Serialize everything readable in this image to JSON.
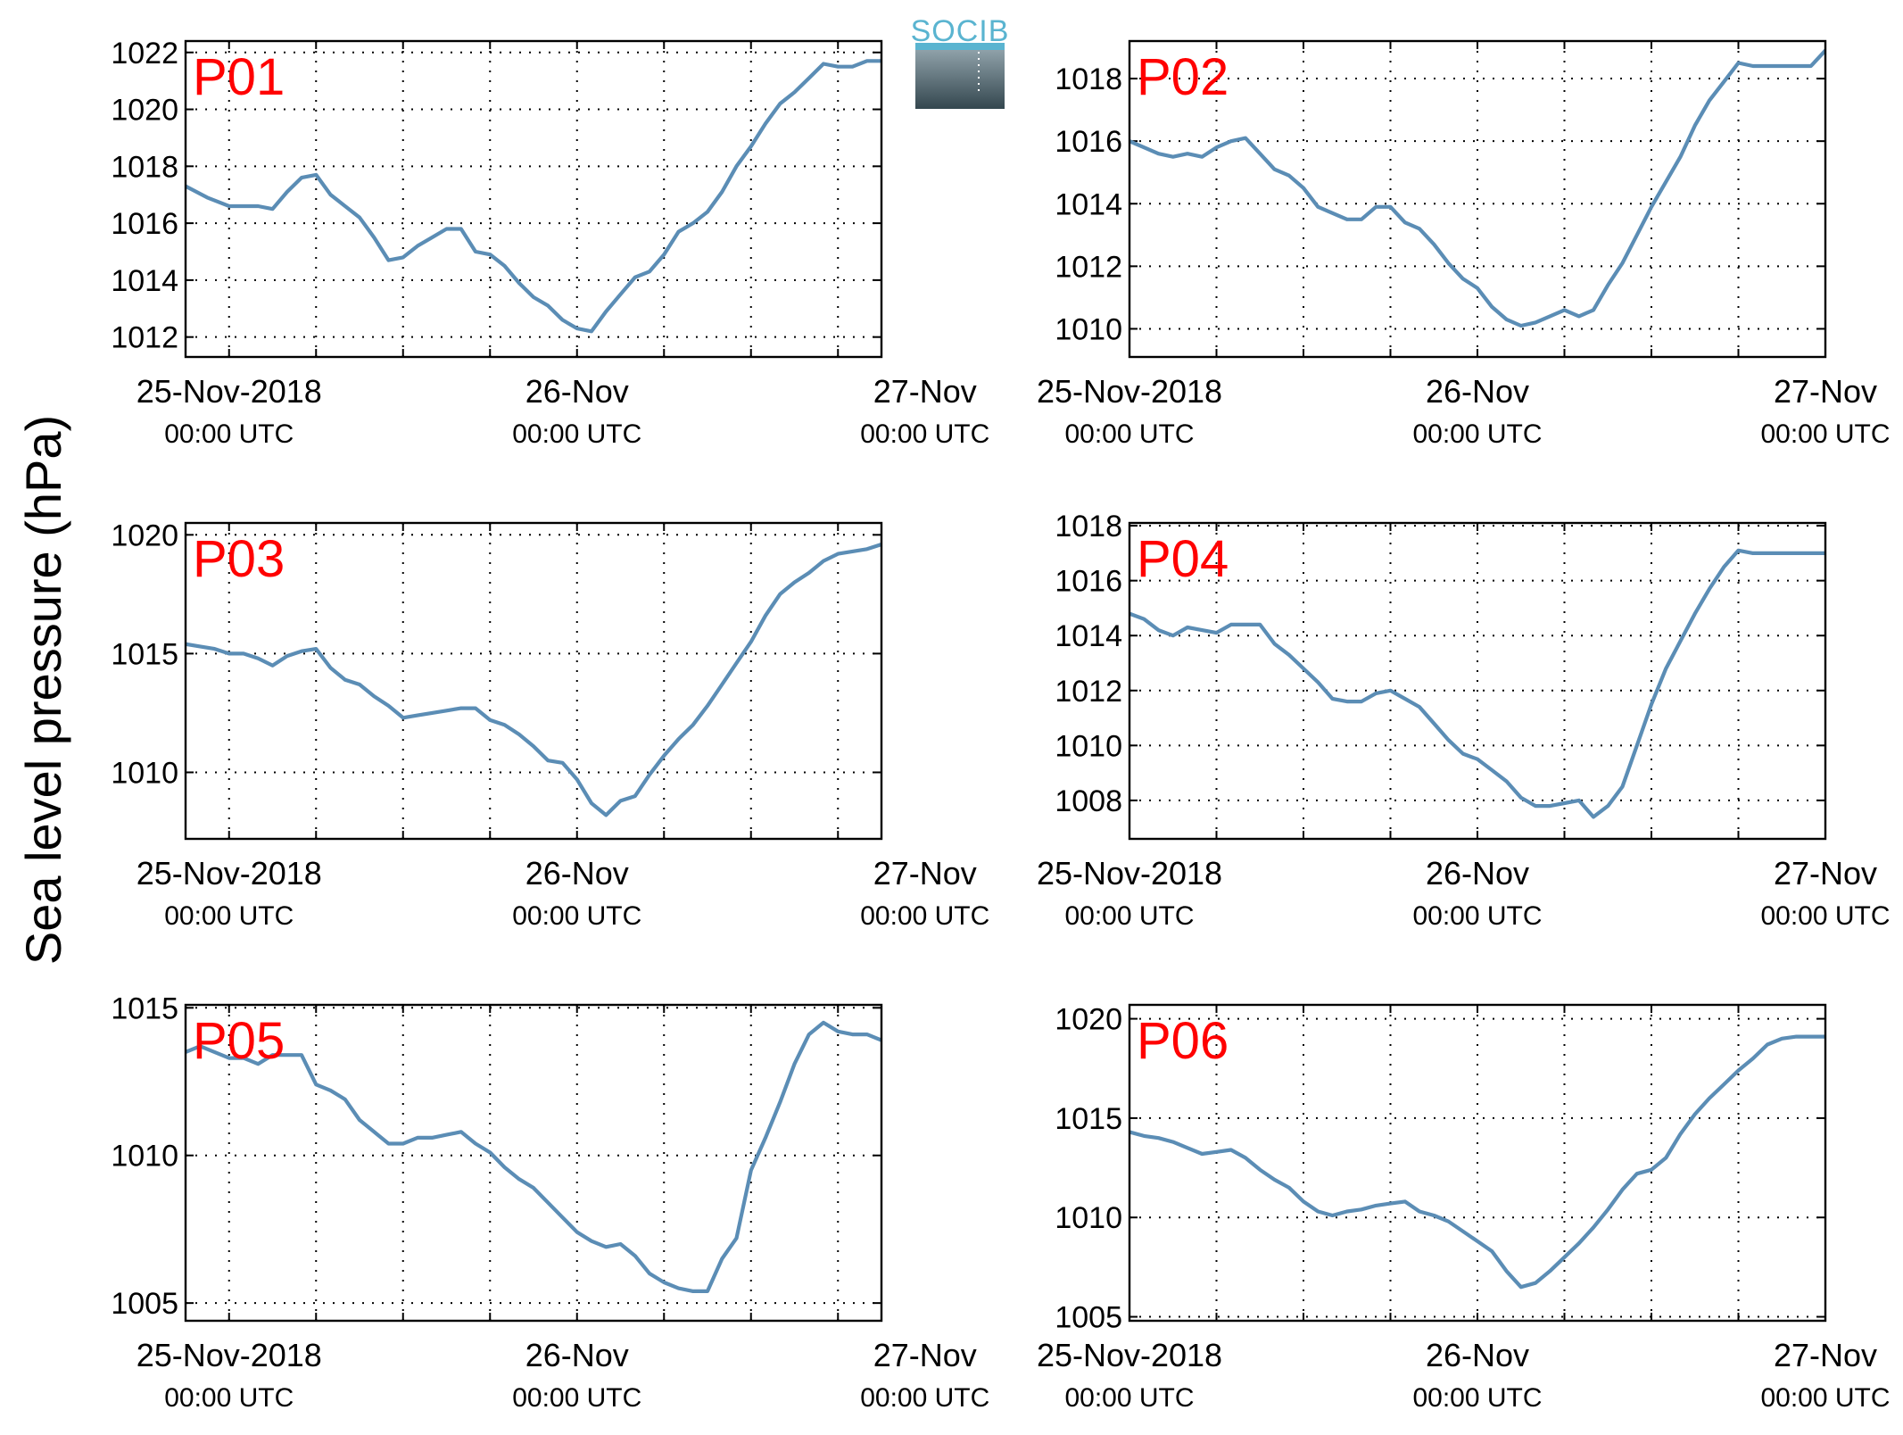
{
  "ylabel": "Sea level pressure (hPa)",
  "logo": {
    "text": "SOCIB",
    "text_color": "#5ab4d0",
    "box_top_color": "#9aacb4",
    "box_bottom_color": "#34474f"
  },
  "colors": {
    "series": "#5b8db5",
    "panel_label": "#ff0000"
  },
  "chart_data": [
    {
      "type": "line",
      "title": "P01",
      "grid": true,
      "x_tick_labels": [
        [
          "25-Nov-2018",
          "00:00 UTC"
        ],
        [
          "26-Nov",
          "00:00 UTC"
        ],
        [
          "27-Nov",
          "00:00 UTC"
        ]
      ],
      "xlim_hours": [
        -3,
        45
      ],
      "ylim": [
        1011.3,
        1022.4
      ],
      "y_ticks": [
        1012,
        1014,
        1016,
        1018,
        1020,
        1022
      ],
      "series": [
        {
          "x_hours": [
            -3,
            -1.5,
            0,
            1,
            2,
            3,
            4,
            5,
            6,
            7,
            8,
            9,
            10,
            11,
            12,
            13,
            14,
            15,
            16,
            17,
            18,
            19,
            20,
            21,
            22,
            23,
            24,
            25,
            26,
            27,
            28,
            29,
            30,
            31,
            32,
            33,
            34,
            35,
            36,
            37,
            38,
            39,
            40,
            41,
            42,
            43,
            44,
            45
          ],
          "values": [
            1017.3,
            1016.9,
            1016.6,
            1016.6,
            1016.6,
            1016.5,
            1017.1,
            1017.6,
            1017.7,
            1017.0,
            1016.6,
            1016.2,
            1015.5,
            1014.7,
            1014.8,
            1015.2,
            1015.5,
            1015.8,
            1015.8,
            1015.0,
            1014.9,
            1014.5,
            1013.9,
            1013.4,
            1013.1,
            1012.6,
            1012.3,
            1012.2,
            1012.9,
            1013.5,
            1014.1,
            1014.3,
            1014.9,
            1015.7,
            1016.0,
            1016.4,
            1017.1,
            1018.0,
            1018.7,
            1019.5,
            1020.2,
            1020.6,
            1021.1,
            1021.6,
            1021.5,
            1021.5,
            1021.7,
            1021.7
          ]
        }
      ]
    },
    {
      "type": "line",
      "title": "P02",
      "grid": true,
      "x_tick_labels": [
        [
          "25-Nov-2018",
          "00:00 UTC"
        ],
        [
          "26-Nov",
          "00:00 UTC"
        ],
        [
          "27-Nov",
          "00:00 UTC"
        ]
      ],
      "xlim_hours": [
        0,
        48
      ],
      "ylim": [
        1009.1,
        1019.2
      ],
      "y_ticks": [
        1010,
        1012,
        1014,
        1016,
        1018
      ],
      "series": [
        {
          "x_hours": [
            0,
            1,
            2,
            3,
            4,
            5,
            6,
            7,
            8,
            9,
            10,
            11,
            12,
            13,
            14,
            15,
            16,
            17,
            18,
            19,
            20,
            21,
            22,
            23,
            24,
            25,
            26,
            27,
            28,
            29,
            30,
            31,
            32,
            33,
            34,
            35,
            36,
            37,
            38,
            39,
            40,
            41,
            42,
            43,
            44,
            45,
            46,
            47,
            48
          ],
          "values": [
            1016.0,
            1015.8,
            1015.6,
            1015.5,
            1015.6,
            1015.5,
            1015.8,
            1016.0,
            1016.1,
            1015.6,
            1015.1,
            1014.9,
            1014.5,
            1013.9,
            1013.7,
            1013.5,
            1013.5,
            1013.9,
            1013.9,
            1013.4,
            1013.2,
            1012.7,
            1012.1,
            1011.6,
            1011.3,
            1010.7,
            1010.3,
            1010.1,
            1010.2,
            1010.4,
            1010.6,
            1010.4,
            1010.6,
            1011.4,
            1012.1,
            1013.0,
            1013.9,
            1014.7,
            1015.5,
            1016.5,
            1017.3,
            1017.9,
            1018.5,
            1018.4,
            1018.4,
            1018.4,
            1018.4,
            1018.4,
            1018.9
          ]
        }
      ]
    },
    {
      "type": "line",
      "title": "P03",
      "grid": true,
      "x_tick_labels": [
        [
          "25-Nov-2018",
          "00:00 UTC"
        ],
        [
          "26-Nov",
          "00:00 UTC"
        ],
        [
          "27-Nov",
          "00:00 UTC"
        ]
      ],
      "xlim_hours": [
        -3,
        45
      ],
      "ylim": [
        1007.2,
        1020.5
      ],
      "y_ticks": [
        1010,
        1015,
        1020
      ],
      "series": [
        {
          "x_hours": [
            -3,
            -2,
            -1,
            0,
            1,
            2,
            3,
            4,
            5,
            6,
            7,
            8,
            9,
            10,
            11,
            12,
            13,
            14,
            15,
            16,
            17,
            18,
            19,
            20,
            21,
            22,
            23,
            24,
            25,
            26,
            27,
            28,
            29,
            30,
            31,
            32,
            33,
            34,
            35,
            36,
            37,
            38,
            39,
            40,
            41,
            42,
            43,
            44,
            45
          ],
          "values": [
            1015.4,
            1015.3,
            1015.2,
            1015.0,
            1015.0,
            1014.8,
            1014.5,
            1014.9,
            1015.1,
            1015.2,
            1014.4,
            1013.9,
            1013.7,
            1013.2,
            1012.8,
            1012.3,
            1012.4,
            1012.5,
            1012.6,
            1012.7,
            1012.7,
            1012.2,
            1012.0,
            1011.6,
            1011.1,
            1010.5,
            1010.4,
            1009.7,
            1008.7,
            1008.2,
            1008.8,
            1009.0,
            1009.9,
            1010.7,
            1011.4,
            1012.0,
            1012.8,
            1013.7,
            1014.6,
            1015.5,
            1016.6,
            1017.5,
            1018.0,
            1018.4,
            1018.9,
            1019.2,
            1019.3,
            1019.4,
            1019.6
          ]
        }
      ]
    },
    {
      "type": "line",
      "title": "P04",
      "grid": true,
      "x_tick_labels": [
        [
          "25-Nov-2018",
          "00:00 UTC"
        ],
        [
          "26-Nov",
          "00:00 UTC"
        ],
        [
          "27-Nov",
          "00:00 UTC"
        ]
      ],
      "xlim_hours": [
        0,
        48
      ],
      "ylim": [
        1006.6,
        1018.1
      ],
      "y_ticks": [
        1008,
        1010,
        1012,
        1014,
        1016,
        1018
      ],
      "series": [
        {
          "x_hours": [
            0,
            1,
            2,
            3,
            4,
            5,
            6,
            7,
            8,
            9,
            10,
            11,
            12,
            13,
            14,
            15,
            16,
            17,
            18,
            19,
            20,
            21,
            22,
            23,
            24,
            25,
            26,
            27,
            28,
            29,
            30,
            31,
            32,
            33,
            34,
            35,
            36,
            37,
            38,
            39,
            40,
            41,
            42,
            43,
            44,
            45,
            46,
            47,
            48
          ],
          "values": [
            1014.8,
            1014.6,
            1014.2,
            1014.0,
            1014.3,
            1014.2,
            1014.1,
            1014.4,
            1014.4,
            1014.4,
            1013.7,
            1013.3,
            1012.8,
            1012.3,
            1011.7,
            1011.6,
            1011.6,
            1011.9,
            1012.0,
            1011.7,
            1011.4,
            1010.8,
            1010.2,
            1009.7,
            1009.5,
            1009.1,
            1008.7,
            1008.1,
            1007.8,
            1007.8,
            1007.9,
            1008.0,
            1007.4,
            1007.8,
            1008.5,
            1010.0,
            1011.5,
            1012.8,
            1013.8,
            1014.8,
            1015.7,
            1016.5,
            1017.1,
            1017.0,
            1017.0,
            1017.0,
            1017.0,
            1017.0,
            1017.0
          ]
        }
      ]
    },
    {
      "type": "line",
      "title": "P05",
      "grid": true,
      "x_tick_labels": [
        [
          "25-Nov-2018",
          "00:00 UTC"
        ],
        [
          "26-Nov",
          "00:00 UTC"
        ],
        [
          "27-Nov",
          "00:00 UTC"
        ]
      ],
      "xlim_hours": [
        -3,
        45
      ],
      "ylim": [
        1004.4,
        1015.1
      ],
      "y_ticks": [
        1005,
        1010,
        1015
      ],
      "series": [
        {
          "x_hours": [
            -3,
            -2,
            -1,
            0,
            1,
            2,
            3,
            4,
            5,
            6,
            7,
            8,
            9,
            10,
            11,
            12,
            13,
            14,
            15,
            16,
            17,
            18,
            19,
            20,
            21,
            22,
            23,
            24,
            25,
            26,
            27,
            28,
            29,
            30,
            31,
            32,
            33,
            34,
            35,
            36,
            37,
            38,
            39,
            40,
            41,
            42,
            43,
            44,
            45
          ],
          "values": [
            1013.5,
            1013.7,
            1013.5,
            1013.3,
            1013.3,
            1013.1,
            1013.4,
            1013.4,
            1013.4,
            1012.4,
            1012.2,
            1011.9,
            1011.2,
            1010.8,
            1010.4,
            1010.4,
            1010.6,
            1010.6,
            1010.7,
            1010.8,
            1010.4,
            1010.1,
            1009.6,
            1009.2,
            1008.9,
            1008.4,
            1007.9,
            1007.4,
            1007.1,
            1006.9,
            1007.0,
            1006.6,
            1006.0,
            1005.7,
            1005.5,
            1005.4,
            1005.4,
            1006.5,
            1007.2,
            1009.5,
            1010.6,
            1011.8,
            1013.1,
            1014.1,
            1014.5,
            1014.2,
            1014.1,
            1014.1,
            1013.9
          ]
        }
      ]
    },
    {
      "type": "line",
      "title": "P06",
      "grid": true,
      "x_tick_labels": [
        [
          "25-Nov-2018",
          "00:00 UTC"
        ],
        [
          "26-Nov",
          "00:00 UTC"
        ],
        [
          "27-Nov",
          "00:00 UTC"
        ]
      ],
      "xlim_hours": [
        0,
        48
      ],
      "ylim": [
        1004.8,
        1020.7
      ],
      "y_ticks": [
        1005,
        1010,
        1015,
        1020
      ],
      "series": [
        {
          "x_hours": [
            0,
            1,
            2,
            3,
            4,
            5,
            6,
            7,
            8,
            9,
            10,
            11,
            12,
            13,
            14,
            15,
            16,
            17,
            18,
            19,
            20,
            21,
            22,
            23,
            24,
            25,
            26,
            27,
            28,
            29,
            30,
            31,
            32,
            33,
            34,
            35,
            36,
            37,
            38,
            39,
            40,
            41,
            42,
            43,
            44,
            45,
            46,
            47,
            48
          ],
          "values": [
            1014.3,
            1014.1,
            1014.0,
            1013.8,
            1013.5,
            1013.2,
            1013.3,
            1013.4,
            1013.0,
            1012.4,
            1011.9,
            1011.5,
            1010.8,
            1010.3,
            1010.1,
            1010.3,
            1010.4,
            1010.6,
            1010.7,
            1010.8,
            1010.3,
            1010.1,
            1009.8,
            1009.3,
            1008.8,
            1008.3,
            1007.3,
            1006.5,
            1006.7,
            1007.3,
            1008.0,
            1008.7,
            1009.5,
            1010.4,
            1011.4,
            1012.2,
            1012.4,
            1013.0,
            1014.2,
            1015.2,
            1016.0,
            1016.7,
            1017.4,
            1018.0,
            1018.7,
            1019.0,
            1019.1,
            1019.1,
            1019.1
          ]
        }
      ]
    }
  ]
}
